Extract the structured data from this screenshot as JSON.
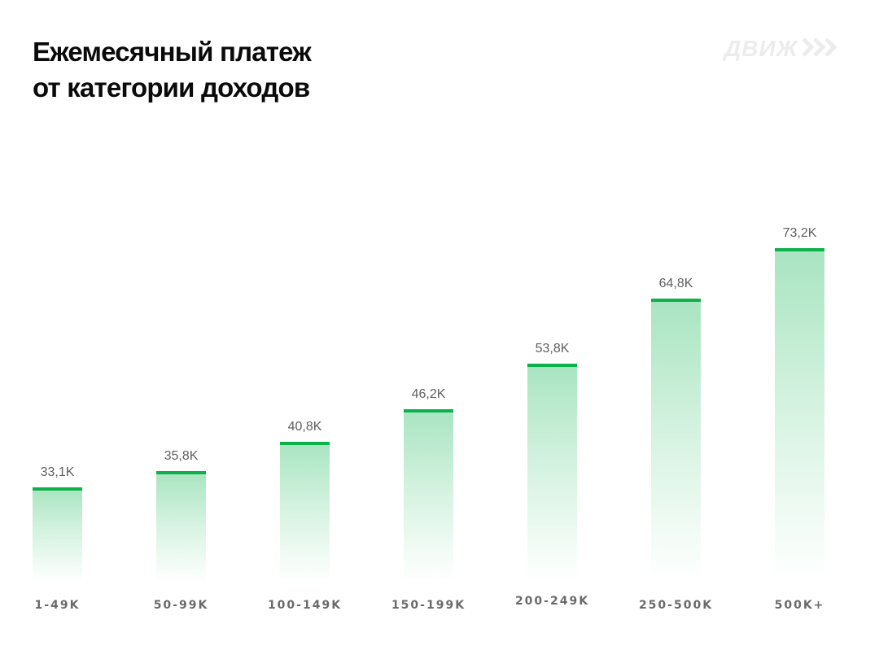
{
  "title": {
    "line1": "Ежемесячный платеж",
    "line2": "от категории доходов"
  },
  "logo": {
    "text": "ДВИЖ",
    "icon": "triple-chevron-right-icon",
    "color": "#ececec"
  },
  "colors": {
    "bar_cap": "#0db14b",
    "bar_gradient_top": "#a8e4c0",
    "value_label": "#5f5f5f",
    "category_label": "#6a6a6a"
  },
  "chart_data": {
    "type": "bar",
    "title": "Ежемесячный платеж от категории доходов",
    "xlabel": "",
    "ylabel": "",
    "categories": [
      "1-49K",
      "50-99K",
      "100-149K",
      "150-199K",
      "200-249K",
      "250-500K",
      "500K+"
    ],
    "values": [
      33.1,
      35.8,
      40.8,
      46.2,
      53.8,
      64.8,
      73.2
    ],
    "value_labels": [
      "33,1K",
      "35,8K",
      "40,8K",
      "46,2K",
      "53,8K",
      "64,8K",
      "73,2K"
    ],
    "unit": "K",
    "grid": false,
    "legend": null
  }
}
